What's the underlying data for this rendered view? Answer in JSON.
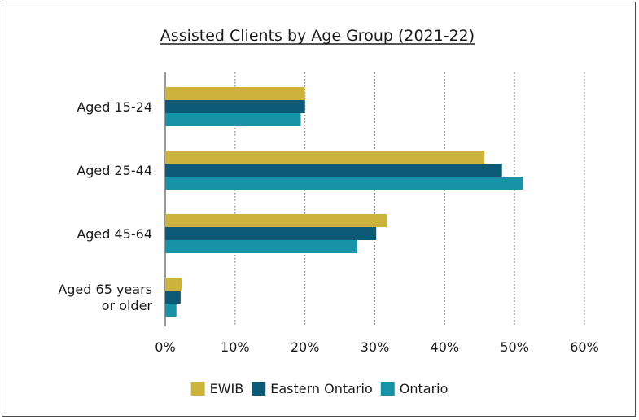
{
  "chart_data": {
    "type": "bar",
    "orientation": "horizontal",
    "title": "Assisted Clients by Age Group (2021-22)",
    "categories": [
      [
        "Aged 15-24"
      ],
      [
        "Aged 25-44"
      ],
      [
        "Aged 45-64"
      ],
      [
        "Aged 65 years",
        "or older"
      ]
    ],
    "series": [
      {
        "name": "EWIB",
        "color": "#cbb33c",
        "values": [
          0.2,
          0.457,
          0.317,
          0.024
        ]
      },
      {
        "name": "Eastern Ontario",
        "color": "#0d5a76",
        "values": [
          0.2,
          0.482,
          0.302,
          0.022
        ]
      },
      {
        "name": "Ontario",
        "color": "#1892a7",
        "values": [
          0.194,
          0.512,
          0.275,
          0.016
        ]
      }
    ],
    "xlim": [
      0,
      0.6
    ],
    "xticks": [
      0,
      0.1,
      0.2,
      0.3,
      0.4,
      0.5,
      0.6
    ],
    "xtick_labels": [
      "0%",
      "10%",
      "20%",
      "30%",
      "40%",
      "50%",
      "60%"
    ],
    "xgrid": true,
    "legend_position": "bottom"
  }
}
